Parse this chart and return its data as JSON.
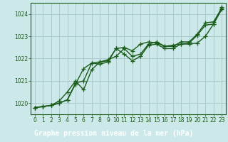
{
  "x": [
    0,
    1,
    2,
    3,
    4,
    5,
    6,
    7,
    8,
    9,
    10,
    11,
    12,
    13,
    14,
    15,
    16,
    17,
    18,
    19,
    20,
    21,
    22,
    23
  ],
  "line1": [
    1019.8,
    1019.85,
    1019.9,
    1020.1,
    1020.5,
    1021.0,
    1020.6,
    1021.5,
    1021.85,
    1021.95,
    1022.1,
    1022.45,
    1022.1,
    1022.2,
    1022.65,
    1022.75,
    1022.55,
    1022.55,
    1022.75,
    1022.75,
    1023.1,
    1023.6,
    1023.65,
    1024.25
  ],
  "line2": [
    1019.8,
    1019.85,
    1019.9,
    1020.0,
    1020.15,
    1020.9,
    1021.0,
    1021.8,
    1021.75,
    1021.85,
    1022.45,
    1022.5,
    1022.35,
    1022.65,
    1022.75,
    1022.7,
    1022.55,
    1022.6,
    1022.65,
    1022.7,
    1023.05,
    1023.5,
    1023.55,
    1024.3
  ],
  "line3": [
    1019.8,
    1019.85,
    1019.9,
    1020.0,
    1020.15,
    1020.85,
    1021.55,
    1021.8,
    1021.85,
    1021.9,
    1022.45,
    1022.2,
    1021.9,
    1022.1,
    1022.6,
    1022.65,
    1022.45,
    1022.45,
    1022.65,
    1022.65,
    1022.7,
    1023.0,
    1023.55,
    1024.2
  ],
  "bg_color": "#cce8e8",
  "grid_color": "#aacccc",
  "line_color": "#1a5c1a",
  "xlabel_bg": "#2d6b2d",
  "xlabel_text": "#ffffff",
  "marker": "+",
  "markersize": 4,
  "linewidth": 1.0,
  "xlabel": "Graphe pression niveau de la mer (hPa)",
  "ylim": [
    1019.5,
    1024.5
  ],
  "xlim": [
    -0.5,
    23.5
  ],
  "yticks": [
    1020,
    1021,
    1022,
    1023,
    1024
  ],
  "xticks": [
    0,
    1,
    2,
    3,
    4,
    5,
    6,
    7,
    8,
    9,
    10,
    11,
    12,
    13,
    14,
    15,
    16,
    17,
    18,
    19,
    20,
    21,
    22,
    23
  ],
  "tick_fontsize": 5.5,
  "xlabel_fontsize": 7.0
}
